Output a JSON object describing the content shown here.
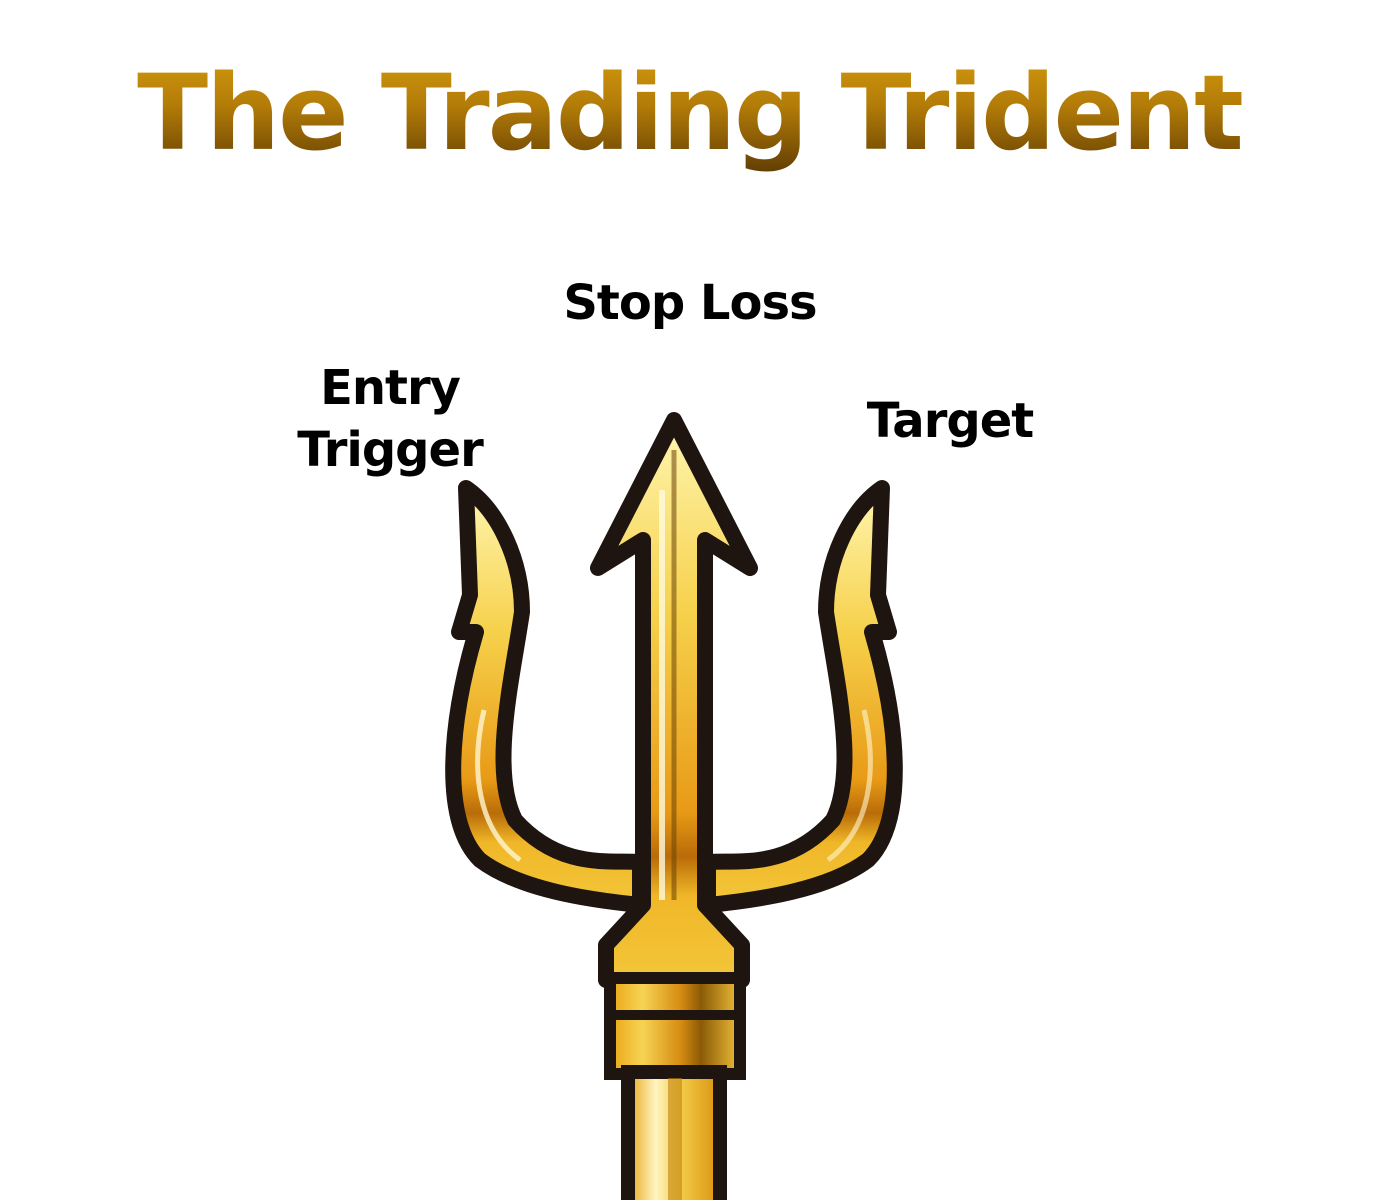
{
  "title": "The Trading Trident",
  "labels": {
    "stop_loss": "Stop Loss",
    "entry_trigger_line1": "Entry",
    "entry_trigger_line2": "Trigger",
    "target": "Target"
  },
  "colors": {
    "gold_light": "#fff2a6",
    "gold_mid": "#f2c12e",
    "gold_deep": "#d98a12",
    "outline": "#1e1410",
    "title_top": "#dca10e",
    "title_bottom": "#4e3002"
  },
  "icons": [
    "trident-icon"
  ]
}
